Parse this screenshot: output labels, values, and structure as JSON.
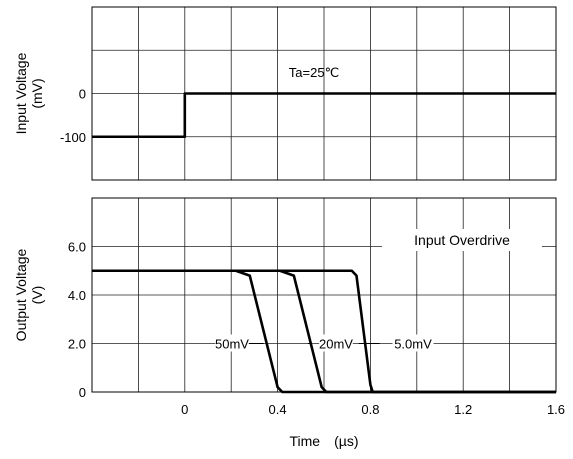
{
  "chart_data": [
    {
      "type": "line",
      "ylabel": "Input Voltage\n(mV)",
      "ylim": [
        -200,
        200
      ],
      "xlim": [
        -0.4,
        1.6
      ],
      "grid": true,
      "yticks": [
        "0",
        "-100"
      ],
      "ytick_values": [
        0,
        -100
      ],
      "annotations": [
        "Ta=25℃"
      ],
      "series": [
        {
          "x": [
            -0.4,
            0.0,
            0.0,
            1.6
          ],
          "y": [
            -100,
            -100,
            0,
            0
          ]
        }
      ]
    },
    {
      "type": "line",
      "xlabel": "Time　(µs)",
      "ylabel": "Output Voltage\n(V)",
      "ylim": [
        0,
        8
      ],
      "xlim": [
        -0.4,
        1.6
      ],
      "grid": true,
      "xticks": [
        "0",
        "0.4",
        "0.8",
        "1.2",
        "1.6"
      ],
      "xtick_values": [
        0,
        0.4,
        0.8,
        1.2,
        1.6
      ],
      "yticks": [
        "6.0",
        "4.0",
        "2.0",
        "0"
      ],
      "ytick_values": [
        6,
        4,
        2,
        0
      ],
      "legend_title": "Input Overdrive",
      "series": [
        {
          "name": "50mV",
          "x": [
            -0.4,
            0.22,
            0.28,
            0.4,
            0.42,
            1.6
          ],
          "y": [
            5.0,
            5.0,
            4.8,
            0.2,
            0.0,
            0.0
          ]
        },
        {
          "name": "20mV",
          "x": [
            -0.4,
            0.41,
            0.47,
            0.59,
            0.61,
            1.6
          ],
          "y": [
            5.0,
            5.0,
            4.8,
            0.2,
            0.0,
            0.0
          ]
        },
        {
          "name": "5.0mV",
          "x": [
            -0.4,
            0.72,
            0.74,
            0.8,
            0.81,
            1.6
          ],
          "y": [
            5.0,
            5.0,
            4.8,
            0.3,
            0.0,
            0.0
          ]
        }
      ]
    }
  ]
}
